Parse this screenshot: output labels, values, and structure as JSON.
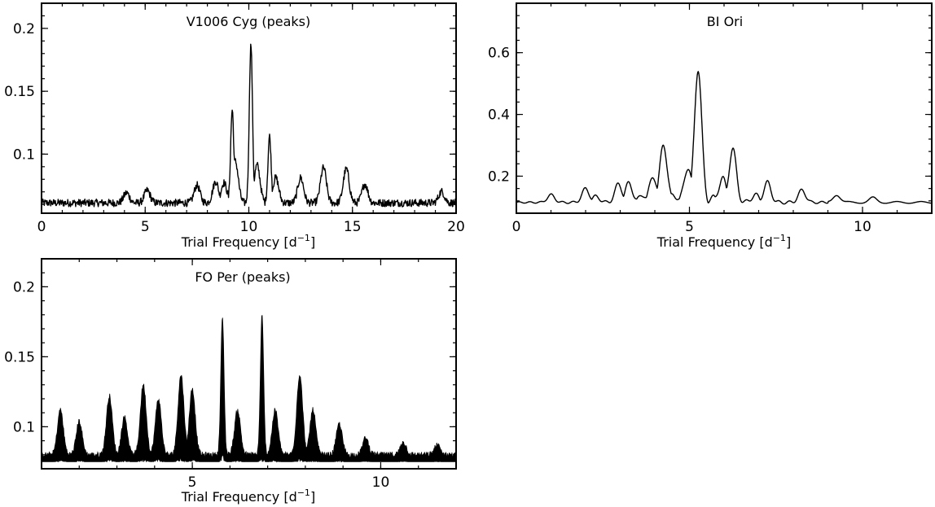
{
  "chart_data": [
    {
      "type": "line",
      "title": "V1006 Cyg (peaks)",
      "xlabel": "Trial Frequency [d",
      "xlabel_sup": "−1",
      "xlabel_end": "]",
      "xlim": [
        0,
        20
      ],
      "ylim": [
        0.053,
        0.22
      ],
      "xticks": [
        0,
        5,
        10,
        15,
        20
      ],
      "xtick_labels": [
        "0",
        "5",
        "10",
        "15",
        "20"
      ],
      "yticks": [
        0.1,
        0.15,
        0.2
      ],
      "ytick_labels": [
        "0.1",
        "0.15",
        "0.2"
      ],
      "baseline": 0.06,
      "peaks": [
        {
          "x": 4.1,
          "y": 0.068
        },
        {
          "x": 5.1,
          "y": 0.07
        },
        {
          "x": 7.5,
          "y": 0.074
        },
        {
          "x": 8.4,
          "y": 0.077
        },
        {
          "x": 8.8,
          "y": 0.076
        },
        {
          "x": 9.2,
          "y": 0.134
        },
        {
          "x": 9.35,
          "y": 0.093
        },
        {
          "x": 10.1,
          "y": 0.186
        },
        {
          "x": 10.4,
          "y": 0.09
        },
        {
          "x": 11.0,
          "y": 0.113
        },
        {
          "x": 11.3,
          "y": 0.08
        },
        {
          "x": 12.5,
          "y": 0.08
        },
        {
          "x": 13.6,
          "y": 0.088
        },
        {
          "x": 14.7,
          "y": 0.087
        },
        {
          "x": 15.6,
          "y": 0.075
        },
        {
          "x": 19.3,
          "y": 0.069
        }
      ]
    },
    {
      "type": "line",
      "title": "BI Ori",
      "xlabel": "Trial Frequency [d",
      "xlabel_sup": "−1",
      "xlabel_end": "]",
      "xlim": [
        0,
        12
      ],
      "ylim": [
        0.08,
        0.76
      ],
      "xticks": [
        0,
        5,
        10
      ],
      "xtick_labels": [
        "0",
        "5",
        "10"
      ],
      "yticks": [
        0.2,
        0.4,
        0.6
      ],
      "ytick_labels": [
        "0.2",
        "0.4",
        "0.6"
      ],
      "baseline": 0.115,
      "peaks": [
        {
          "x": 1.0,
          "y": 0.14
        },
        {
          "x": 2.0,
          "y": 0.16
        },
        {
          "x": 2.3,
          "y": 0.135
        },
        {
          "x": 2.95,
          "y": 0.175
        },
        {
          "x": 3.25,
          "y": 0.178
        },
        {
          "x": 3.65,
          "y": 0.14
        },
        {
          "x": 3.95,
          "y": 0.2
        },
        {
          "x": 4.25,
          "y": 0.305
        },
        {
          "x": 4.55,
          "y": 0.14
        },
        {
          "x": 4.95,
          "y": 0.23
        },
        {
          "x": 5.25,
          "y": 0.55
        },
        {
          "x": 5.65,
          "y": 0.13
        },
        {
          "x": 5.95,
          "y": 0.195
        },
        {
          "x": 6.25,
          "y": 0.29
        },
        {
          "x": 6.9,
          "y": 0.14
        },
        {
          "x": 7.25,
          "y": 0.18
        },
        {
          "x": 8.25,
          "y": 0.155
        },
        {
          "x": 9.25,
          "y": 0.14
        },
        {
          "x": 10.3,
          "y": 0.13
        }
      ]
    },
    {
      "type": "area",
      "title": "FO Per (peaks)",
      "xlabel": "Trial Frequency [d",
      "xlabel_sup": "−1",
      "xlabel_end": "]",
      "xlim": [
        1,
        12
      ],
      "ylim": [
        0.07,
        0.22
      ],
      "xticks": [
        5,
        10
      ],
      "xtick_labels": [
        "5",
        "10"
      ],
      "yticks": [
        0.1,
        0.15,
        0.2
      ],
      "ytick_labels": [
        "0.1",
        "0.15",
        "0.2"
      ],
      "baseline": 0.078,
      "peaks": [
        {
          "x": 1.5,
          "y": 0.11
        },
        {
          "x": 2.0,
          "y": 0.102
        },
        {
          "x": 2.8,
          "y": 0.12
        },
        {
          "x": 3.2,
          "y": 0.105
        },
        {
          "x": 3.7,
          "y": 0.128
        },
        {
          "x": 4.1,
          "y": 0.118
        },
        {
          "x": 4.7,
          "y": 0.135
        },
        {
          "x": 5.0,
          "y": 0.125
        },
        {
          "x": 5.8,
          "y": 0.176
        },
        {
          "x": 6.2,
          "y": 0.11
        },
        {
          "x": 6.85,
          "y": 0.177
        },
        {
          "x": 7.2,
          "y": 0.11
        },
        {
          "x": 7.85,
          "y": 0.135
        },
        {
          "x": 8.2,
          "y": 0.11
        },
        {
          "x": 8.9,
          "y": 0.1
        },
        {
          "x": 9.6,
          "y": 0.09
        },
        {
          "x": 10.6,
          "y": 0.087
        },
        {
          "x": 11.5,
          "y": 0.085
        }
      ]
    }
  ]
}
